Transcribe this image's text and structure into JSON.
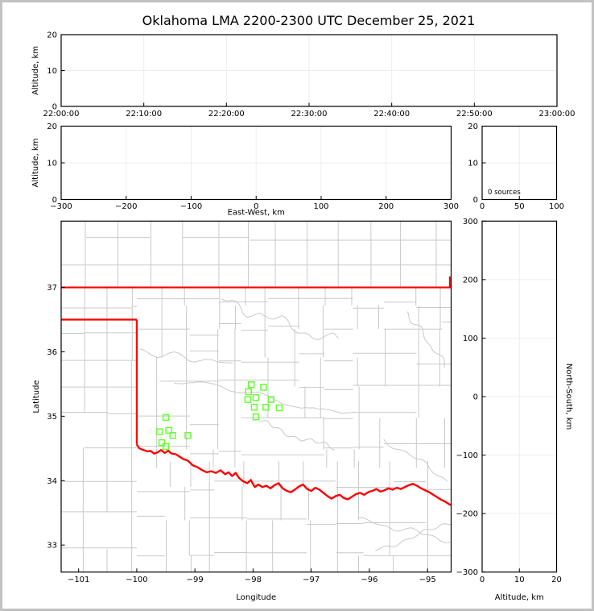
{
  "chart_data": {
    "type": "scatter",
    "title": "Oklahoma LMA 2200-2300 UTC December 25, 2021",
    "colors": {
      "state_border_red": "#ff0000",
      "station_green": "#66ff33",
      "county_gray": "#c9c9c9",
      "gridline_gray": "#ededed",
      "axis_black": "#000000",
      "frame_gray": "#c2c2c2"
    },
    "panels": {
      "time_height": {
        "ylabel": "Altitude, km",
        "ylim": [
          0,
          20
        ],
        "yticks": [
          0,
          10,
          20
        ],
        "xtick_labels": [
          "22:00:00",
          "22:10:00",
          "22:20:00",
          "22:30:00",
          "22:40:00",
          "22:50:00",
          "23:00:00"
        ],
        "grid_x_indices": [
          1,
          2,
          3,
          4,
          5
        ],
        "grid_y": [
          10
        ],
        "series": []
      },
      "ew_height": {
        "ylabel": "Altitude, km",
        "xlabel": "East-West, km",
        "xlim": [
          -300,
          300
        ],
        "xticks": [
          -300,
          -200,
          -100,
          0,
          100,
          200,
          300
        ],
        "ylim": [
          0,
          20
        ],
        "yticks": [
          0,
          10,
          20
        ],
        "grid_x": [
          -200,
          -100,
          0,
          100,
          200
        ],
        "grid_y": [
          10
        ],
        "series": []
      },
      "histogram": {
        "annotation": "0 sources",
        "xlim": [
          0,
          100
        ],
        "xticks": [
          0,
          50,
          100
        ],
        "ylim": [
          0,
          20
        ],
        "yticks": [
          0,
          10,
          20
        ],
        "grid_x": [
          50
        ],
        "grid_y": [
          10
        ],
        "series": []
      },
      "map": {
        "xlabel": "Longitude",
        "ylabel": "Latitude",
        "lon_lim": [
          -101.3,
          -94.594
        ],
        "lat_lim": [
          32.58,
          38.03
        ],
        "xticks": [
          -101,
          -100,
          -99,
          -98,
          -97,
          -96,
          -95
        ],
        "yticks": [
          33,
          34,
          35,
          36,
          37
        ]
      },
      "ns_height": {
        "xlabel": "Altitude, km",
        "ylabel_right": "North-South, km",
        "xlim": [
          0,
          20
        ],
        "xticks": [
          0,
          10,
          20
        ],
        "ylim": [
          -300,
          300
        ],
        "yticks": [
          -300,
          -200,
          -100,
          0,
          100,
          200,
          300
        ],
        "grid_x": [
          10
        ],
        "grid_y": [
          -200,
          -100,
          0,
          100,
          200
        ],
        "series": []
      }
    },
    "stations": [
      [
        -99.5,
        34.98
      ],
      [
        -99.61,
        34.76
      ],
      [
        -99.45,
        34.78
      ],
      [
        -99.38,
        34.7
      ],
      [
        -99.57,
        34.59
      ],
      [
        -99.5,
        34.53
      ],
      [
        -99.12,
        34.7
      ],
      [
        -98.03,
        35.49
      ],
      [
        -97.82,
        35.45
      ],
      [
        -98.08,
        35.38
      ],
      [
        -97.95,
        35.29
      ],
      [
        -98.09,
        35.26
      ],
      [
        -97.98,
        35.14
      ],
      [
        -97.78,
        35.14
      ],
      [
        -97.69,
        35.26
      ],
      [
        -97.55,
        35.13
      ],
      [
        -97.95,
        34.99
      ]
    ],
    "state_border": {
      "north_lat": 37.0,
      "panhandle_lat": 36.5,
      "panhandle_lon_range": [
        -101.3,
        -100.0
      ],
      "meridian_lon": -100.0,
      "meridian_lat_range": [
        34.56,
        36.5
      ],
      "east_lon": -94.617,
      "east_lat_range": [
        37.0,
        37.17
      ],
      "red_river": [
        [
          -100.0,
          34.56
        ],
        [
          -99.96,
          34.505
        ],
        [
          -99.9,
          34.48
        ],
        [
          -99.82,
          34.455
        ],
        [
          -99.76,
          34.46
        ],
        [
          -99.7,
          34.42
        ],
        [
          -99.64,
          34.44
        ],
        [
          -99.58,
          34.475
        ],
        [
          -99.52,
          34.43
        ],
        [
          -99.46,
          34.465
        ],
        [
          -99.4,
          34.42
        ],
        [
          -99.33,
          34.41
        ],
        [
          -99.26,
          34.37
        ],
        [
          -99.2,
          34.335
        ],
        [
          -99.12,
          34.31
        ],
        [
          -99.04,
          34.24
        ],
        [
          -98.96,
          34.21
        ],
        [
          -98.88,
          34.165
        ],
        [
          -98.8,
          34.13
        ],
        [
          -98.72,
          34.145
        ],
        [
          -98.64,
          34.12
        ],
        [
          -98.56,
          34.16
        ],
        [
          -98.48,
          34.1
        ],
        [
          -98.42,
          34.13
        ],
        [
          -98.36,
          34.07
        ],
        [
          -98.3,
          34.12
        ],
        [
          -98.24,
          34.04
        ],
        [
          -98.17,
          33.99
        ],
        [
          -98.1,
          33.96
        ],
        [
          -98.04,
          34.01
        ],
        [
          -97.97,
          33.9
        ],
        [
          -97.91,
          33.94
        ],
        [
          -97.84,
          33.9
        ],
        [
          -97.77,
          33.92
        ],
        [
          -97.7,
          33.88
        ],
        [
          -97.63,
          33.93
        ],
        [
          -97.56,
          33.96
        ],
        [
          -97.49,
          33.88
        ],
        [
          -97.42,
          33.84
        ],
        [
          -97.35,
          33.82
        ],
        [
          -97.28,
          33.86
        ],
        [
          -97.21,
          33.91
        ],
        [
          -97.14,
          33.94
        ],
        [
          -97.07,
          33.87
        ],
        [
          -97.0,
          33.84
        ],
        [
          -96.93,
          33.89
        ],
        [
          -96.86,
          33.86
        ],
        [
          -96.79,
          33.81
        ],
        [
          -96.72,
          33.76
        ],
        [
          -96.65,
          33.72
        ],
        [
          -96.58,
          33.76
        ],
        [
          -96.51,
          33.78
        ],
        [
          -96.44,
          33.73
        ],
        [
          -96.37,
          33.71
        ],
        [
          -96.3,
          33.75
        ],
        [
          -96.23,
          33.79
        ],
        [
          -96.16,
          33.81
        ],
        [
          -96.09,
          33.78
        ],
        [
          -96.02,
          33.82
        ],
        [
          -95.95,
          33.84
        ],
        [
          -95.88,
          33.87
        ],
        [
          -95.81,
          33.83
        ],
        [
          -95.74,
          33.85
        ],
        [
          -95.67,
          33.88
        ],
        [
          -95.6,
          33.86
        ],
        [
          -95.53,
          33.89
        ],
        [
          -95.46,
          33.87
        ],
        [
          -95.39,
          33.9
        ],
        [
          -95.32,
          33.93
        ],
        [
          -95.25,
          33.95
        ],
        [
          -95.18,
          33.92
        ],
        [
          -95.11,
          33.88
        ],
        [
          -95.04,
          33.85
        ],
        [
          -94.97,
          33.82
        ],
        [
          -94.9,
          33.78
        ],
        [
          -94.83,
          33.74
        ],
        [
          -94.76,
          33.7
        ],
        [
          -94.69,
          33.67
        ],
        [
          -94.62,
          33.63
        ],
        [
          -94.59,
          33.62
        ]
      ]
    },
    "counties": {
      "regions": [
        {
          "name": "kansas",
          "lon": [
            -101.3,
            -94.594
          ],
          "lat": [
            37.0,
            38.04
          ],
          "stepx": 0.535,
          "stepy": 0.385,
          "jit": 0.05,
          "drop": 0.04,
          "shift": 0.12,
          "seed": 11
        },
        {
          "name": "texas-panhandle",
          "lon": [
            -101.3,
            -100.0
          ],
          "lat": [
            32.58,
            37.0
          ],
          "stepx": 0.46,
          "stepy": 0.49,
          "jit": 0.05,
          "drop": 0.03,
          "shift": 0.1,
          "seed": 22
        },
        {
          "name": "oklahoma",
          "lon": [
            -100.0,
            -94.594
          ],
          "lat": [
            34.2,
            37.0
          ],
          "stepx": 0.475,
          "stepy": 0.43,
          "jit": 0.22,
          "drop": 0.13,
          "shift": 0.5,
          "seed": 33
        },
        {
          "name": "texas-south",
          "lon": [
            -100.0,
            -94.594
          ],
          "lat": [
            32.58,
            34.3
          ],
          "stepx": 0.5,
          "stepy": 0.46,
          "jit": 0.18,
          "drop": 0.1,
          "shift": 0.45,
          "seed": 44
        }
      ],
      "rivers": [
        {
          "from": [
            -99.95,
            36.02
          ],
          "to": [
            -98.35,
            35.8
          ],
          "amp": 0.055,
          "seed": 3
        },
        {
          "from": [
            -98.55,
            36.8
          ],
          "to": [
            -96.55,
            36.15
          ],
          "amp": 0.1,
          "seed": 5
        },
        {
          "from": [
            -99.35,
            35.55
          ],
          "to": [
            -96.25,
            35.08
          ],
          "amp": 0.07,
          "seed": 7
        },
        {
          "from": [
            -97.9,
            34.9
          ],
          "to": [
            -96.6,
            34.45
          ],
          "amp": 0.06,
          "seed": 9
        },
        {
          "from": [
            -96.2,
            33.4
          ],
          "to": [
            -94.6,
            33.12
          ],
          "amp": 0.05,
          "seed": 13
        },
        {
          "from": [
            -95.35,
            36.62
          ],
          "to": [
            -94.68,
            35.78
          ],
          "amp": 0.05,
          "seed": 17
        },
        {
          "from": [
            -95.9,
            32.92
          ],
          "to": [
            -94.6,
            33.34
          ],
          "amp": 0.05,
          "seed": 19
        },
        {
          "from": [
            -95.75,
            34.65
          ],
          "to": [
            -94.65,
            34.0
          ],
          "amp": 0.05,
          "seed": 23
        }
      ]
    }
  }
}
